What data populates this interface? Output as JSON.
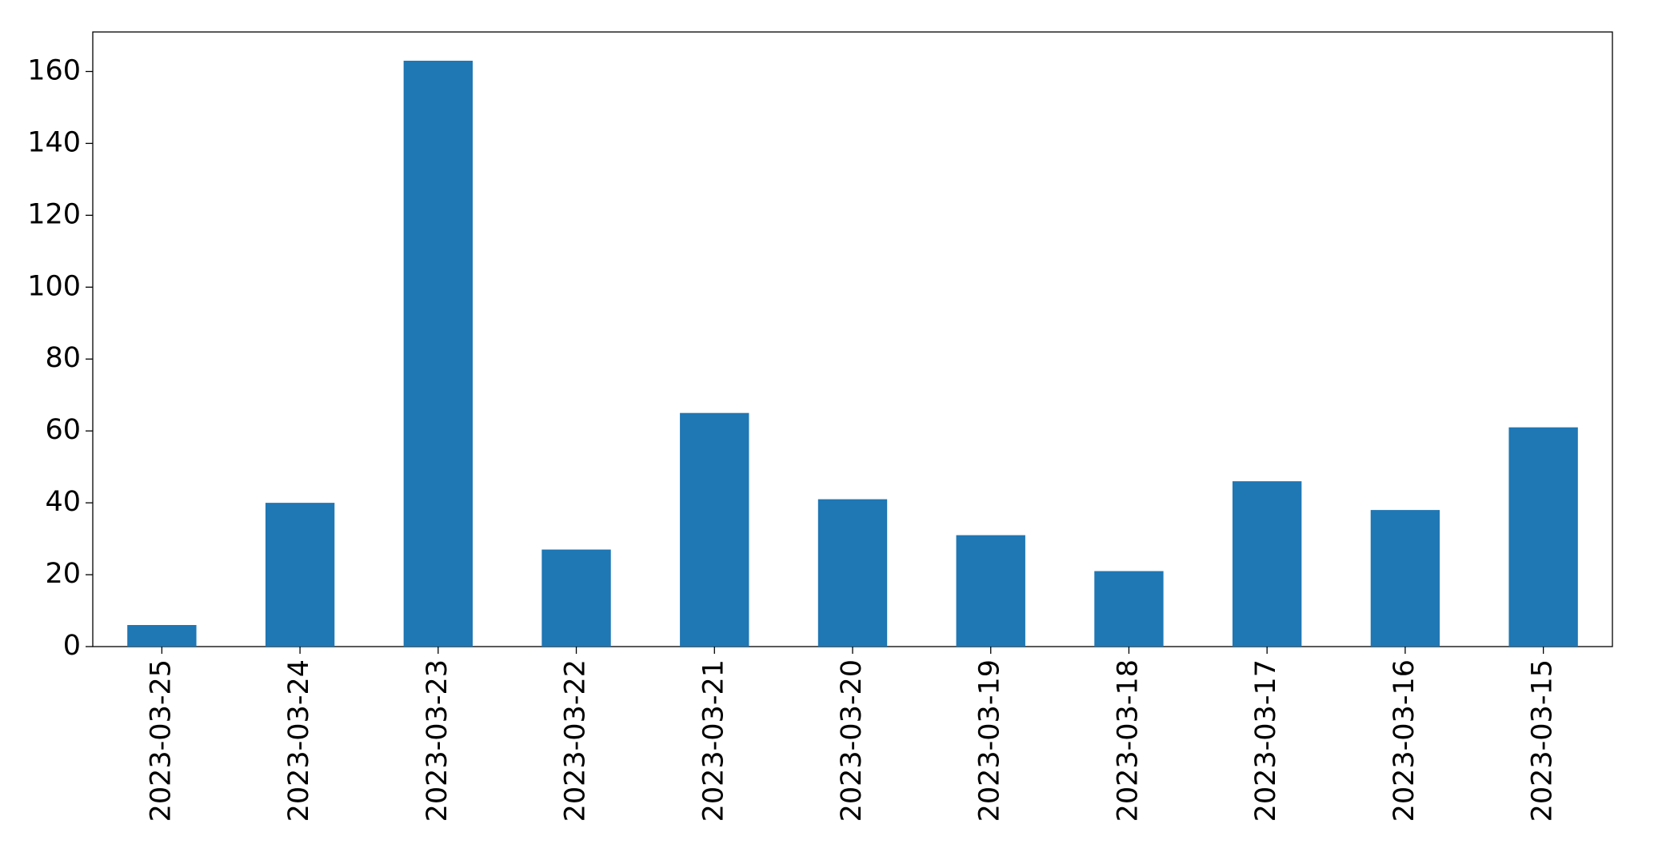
{
  "chart_data": {
    "type": "bar",
    "categories": [
      "2023-03-25",
      "2023-03-24",
      "2023-03-23",
      "2023-03-22",
      "2023-03-21",
      "2023-03-20",
      "2023-03-19",
      "2023-03-18",
      "2023-03-17",
      "2023-03-16",
      "2023-03-15"
    ],
    "values": [
      6,
      40,
      163,
      27,
      65,
      41,
      31,
      21,
      46,
      38,
      61
    ],
    "color": "#1f77b4",
    "ylim": [
      0,
      171
    ],
    "yticks": [
      0,
      20,
      40,
      60,
      80,
      100,
      120,
      140,
      160
    ],
    "grid": false
  }
}
